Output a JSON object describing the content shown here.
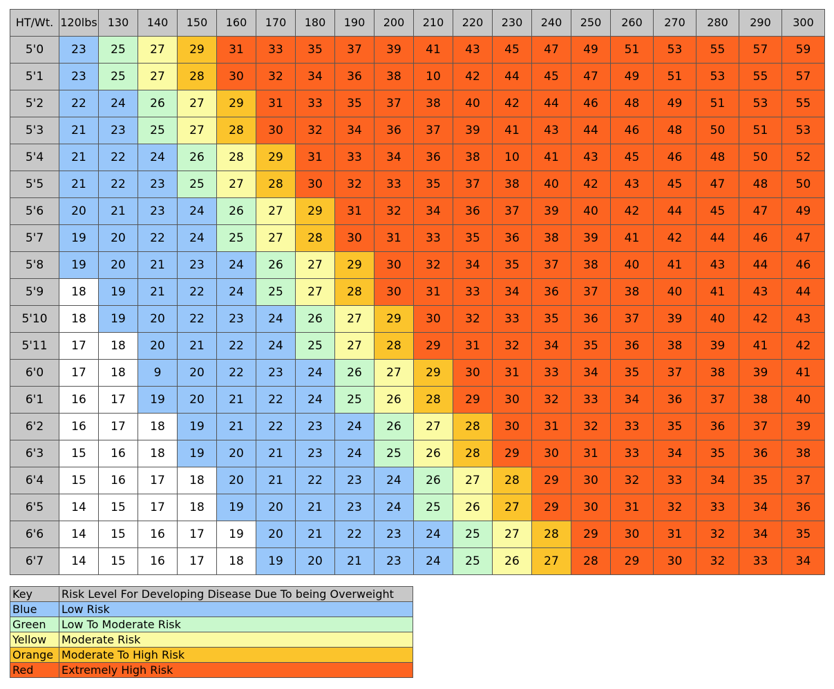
{
  "chart_data": {
    "type": "table",
    "corner_label": "HT/Wt.",
    "columns": [
      "120lbs",
      "130",
      "140",
      "150",
      "160",
      "170",
      "180",
      "190",
      "200",
      "210",
      "220",
      "230",
      "240",
      "250",
      "260",
      "270",
      "280",
      "290",
      "300"
    ],
    "rows": [
      {
        "height": "5'0",
        "values": [
          23,
          25,
          27,
          29,
          31,
          33,
          35,
          37,
          39,
          41,
          43,
          45,
          47,
          49,
          51,
          53,
          55,
          57,
          59
        ],
        "colors": "bgyorrrrrrrrrrrrrrr"
      },
      {
        "height": "5'1",
        "values": [
          23,
          25,
          27,
          28,
          30,
          32,
          34,
          36,
          38,
          10,
          42,
          44,
          45,
          47,
          49,
          51,
          53,
          55,
          57
        ],
        "colors": "bgyorrrrrrrrrrrrrrr"
      },
      {
        "height": "5'2",
        "values": [
          22,
          24,
          26,
          27,
          29,
          31,
          33,
          35,
          37,
          38,
          40,
          42,
          44,
          46,
          48,
          49,
          51,
          53,
          55
        ],
        "colors": "bbgyorrrrrrrrrrrrrr"
      },
      {
        "height": "5'3",
        "values": [
          21,
          23,
          25,
          27,
          28,
          30,
          32,
          34,
          36,
          37,
          39,
          41,
          43,
          44,
          46,
          48,
          50,
          51,
          53
        ],
        "colors": "bbgyorrrrrrrrrrrrrr"
      },
      {
        "height": "5'4",
        "values": [
          21,
          22,
          24,
          26,
          28,
          29,
          31,
          33,
          34,
          36,
          38,
          10,
          41,
          43,
          45,
          46,
          48,
          50,
          52
        ],
        "colors": "bbbgyorrrrrrrrrrrrr"
      },
      {
        "height": "5'5",
        "values": [
          21,
          22,
          23,
          25,
          27,
          28,
          30,
          32,
          33,
          35,
          37,
          38,
          40,
          42,
          43,
          45,
          47,
          48,
          50
        ],
        "colors": "bbbgyorrrrrrrrrrrrr"
      },
      {
        "height": "5'6",
        "values": [
          20,
          21,
          23,
          24,
          26,
          27,
          29,
          31,
          32,
          34,
          36,
          37,
          39,
          40,
          42,
          44,
          45,
          47,
          49
        ],
        "colors": "bbbbgyorrrrrrrrrrrr"
      },
      {
        "height": "5'7",
        "values": [
          19,
          20,
          22,
          24,
          25,
          27,
          28,
          30,
          31,
          33,
          35,
          36,
          38,
          39,
          41,
          42,
          44,
          46,
          47
        ],
        "colors": "bbbbgyorrrrrrrrrrrr"
      },
      {
        "height": "5'8",
        "values": [
          19,
          20,
          21,
          23,
          24,
          26,
          27,
          29,
          30,
          32,
          34,
          35,
          37,
          38,
          40,
          41,
          43,
          44,
          46
        ],
        "colors": "bbbbbgyorrrrrrrrrrr"
      },
      {
        "height": "5'9",
        "values": [
          18,
          19,
          21,
          22,
          24,
          25,
          27,
          28,
          30,
          31,
          33,
          34,
          36,
          37,
          38,
          40,
          41,
          43,
          44
        ],
        "colors": "wbbbbgyorrrrrrrrrrr"
      },
      {
        "height": "5'10",
        "values": [
          18,
          19,
          20,
          22,
          23,
          24,
          26,
          27,
          29,
          30,
          32,
          33,
          35,
          36,
          37,
          39,
          40,
          42,
          43
        ],
        "colors": "wbbbbbgyorrrrrrrrrr"
      },
      {
        "height": "5'11",
        "values": [
          17,
          18,
          20,
          21,
          22,
          24,
          25,
          27,
          28,
          29,
          31,
          32,
          34,
          35,
          36,
          38,
          39,
          41,
          42
        ],
        "colors": "wwbbbbgyorrrrrrrrrr"
      },
      {
        "height": "6'0",
        "values": [
          17,
          18,
          9,
          20,
          22,
          23,
          24,
          26,
          27,
          29,
          30,
          31,
          33,
          34,
          35,
          37,
          38,
          39,
          41
        ],
        "colors": "wwbbbbbgyorrrrrrrrr"
      },
      {
        "height": "6'1",
        "values": [
          16,
          17,
          19,
          20,
          21,
          22,
          24,
          25,
          26,
          28,
          29,
          30,
          32,
          33,
          34,
          36,
          37,
          38,
          40
        ],
        "colors": "wwbbbbbgyorrrrrrrrr"
      },
      {
        "height": "6'2",
        "values": [
          16,
          17,
          18,
          19,
          21,
          22,
          23,
          24,
          26,
          27,
          28,
          30,
          31,
          32,
          33,
          35,
          36,
          37,
          39
        ],
        "colors": "wwwbbbbbgyorrrrrrrr"
      },
      {
        "height": "6'3",
        "values": [
          15,
          16,
          18,
          19,
          20,
          21,
          23,
          24,
          25,
          26,
          28,
          29,
          30,
          31,
          33,
          34,
          35,
          36,
          38
        ],
        "colors": "wwwbbbbbgyorrrrrrrr"
      },
      {
        "height": "6'4",
        "values": [
          15,
          16,
          17,
          18,
          20,
          21,
          22,
          23,
          24,
          26,
          27,
          28,
          29,
          30,
          32,
          33,
          34,
          35,
          37
        ],
        "colors": "wwwwbbbbbgyorrrrrrr"
      },
      {
        "height": "6'5",
        "values": [
          14,
          15,
          17,
          18,
          19,
          20,
          21,
          23,
          24,
          25,
          26,
          27,
          29,
          30,
          31,
          32,
          33,
          34,
          36
        ],
        "colors": "wwwwbbbbbgyorrrrrrr"
      },
      {
        "height": "6'6",
        "values": [
          14,
          15,
          16,
          17,
          19,
          20,
          21,
          22,
          23,
          24,
          25,
          27,
          28,
          29,
          30,
          31,
          32,
          34,
          35
        ],
        "colors": "wwwwwbbbbbgyorrrrrr"
      },
      {
        "height": "6'7",
        "values": [
          14,
          15,
          16,
          17,
          18,
          19,
          20,
          21,
          23,
          24,
          25,
          26,
          27,
          28,
          29,
          30,
          32,
          33,
          34
        ],
        "colors": "wwwwwbbbbbgyorrrrrr"
      }
    ],
    "colors": {
      "w": "#ffffff",
      "b": "#99c7fa",
      "g": "#c9f8cc",
      "y": "#fbfba3",
      "o": "#fbc42c",
      "r": "#fd6421",
      "header": "#c8c8c8"
    }
  },
  "key": {
    "header_label": "Key",
    "header_text": "Risk Level For Developing Disease Due To being Overweight",
    "entries": [
      {
        "color_name": "Blue",
        "risk": "Low Risk",
        "color": "#99c7fa"
      },
      {
        "color_name": "Green",
        "risk": "Low To Moderate Risk",
        "color": "#c9f8cc"
      },
      {
        "color_name": "Yellow",
        "risk": "Moderate Risk",
        "color": "#fbfba3"
      },
      {
        "color_name": "Orange",
        "risk": "Moderate To High Risk",
        "color": "#fbc42c"
      },
      {
        "color_name": "Red",
        "risk": "Extremely High Risk",
        "color": "#fd6421"
      }
    ]
  }
}
